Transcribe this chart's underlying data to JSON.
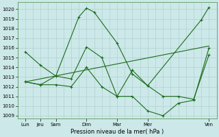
{
  "xlabel": "Pression niveau de la mer( hPa )",
  "background_color": "#cce8e8",
  "grid_color": "#aacccc",
  "line_color": "#1a6b1a",
  "yticks": [
    1009,
    1010,
    1011,
    1012,
    1013,
    1014,
    1015,
    1016,
    1017,
    1018,
    1019,
    1020
  ],
  "ylim_min": 1008.7,
  "ylim_max": 1020.7,
  "xlim_min": 0,
  "xlim_max": 13,
  "xtick_positions": [
    0.5,
    1.5,
    2.5,
    4.5,
    6.5,
    8.5,
    12.5
  ],
  "xtick_labels": [
    "Lun",
    "Jeu",
    "Sam",
    "Dim",
    "Mar",
    "Mer",
    "Ven"
  ],
  "series1_x": [
    0.5,
    1.5,
    2.5,
    4.0,
    4.5,
    5.0,
    6.5,
    7.5,
    8.5,
    12.0,
    12.5
  ],
  "series1_y": [
    1015.6,
    1014.2,
    1013.1,
    1019.2,
    1020.1,
    1019.7,
    1016.5,
    1013.3,
    1012.1,
    1018.9,
    1020.2
  ],
  "series2_x": [
    0.5,
    1.5,
    2.5,
    3.5,
    4.5,
    5.5,
    6.5,
    7.5,
    8.5,
    9.5,
    10.5,
    11.5,
    12.5
  ],
  "series2_y": [
    1012.5,
    1012.2,
    1013.1,
    1012.8,
    1016.1,
    1015.0,
    1011.0,
    1013.7,
    1012.1,
    1011.0,
    1011.0,
    1010.7,
    1015.3
  ],
  "series3_x": [
    0.5,
    1.5,
    2.5,
    3.5,
    4.5,
    5.5,
    6.5,
    7.5,
    8.5,
    9.5,
    10.5,
    11.5,
    12.5
  ],
  "series3_y": [
    1012.5,
    1012.2,
    1012.2,
    1012.0,
    1014.0,
    1012.0,
    1011.0,
    1011.0,
    1009.5,
    1009.0,
    1010.3,
    1010.6,
    1016.0
  ],
  "series4_x": [
    0.5,
    12.5
  ],
  "series4_y": [
    1012.5,
    1016.2
  ]
}
